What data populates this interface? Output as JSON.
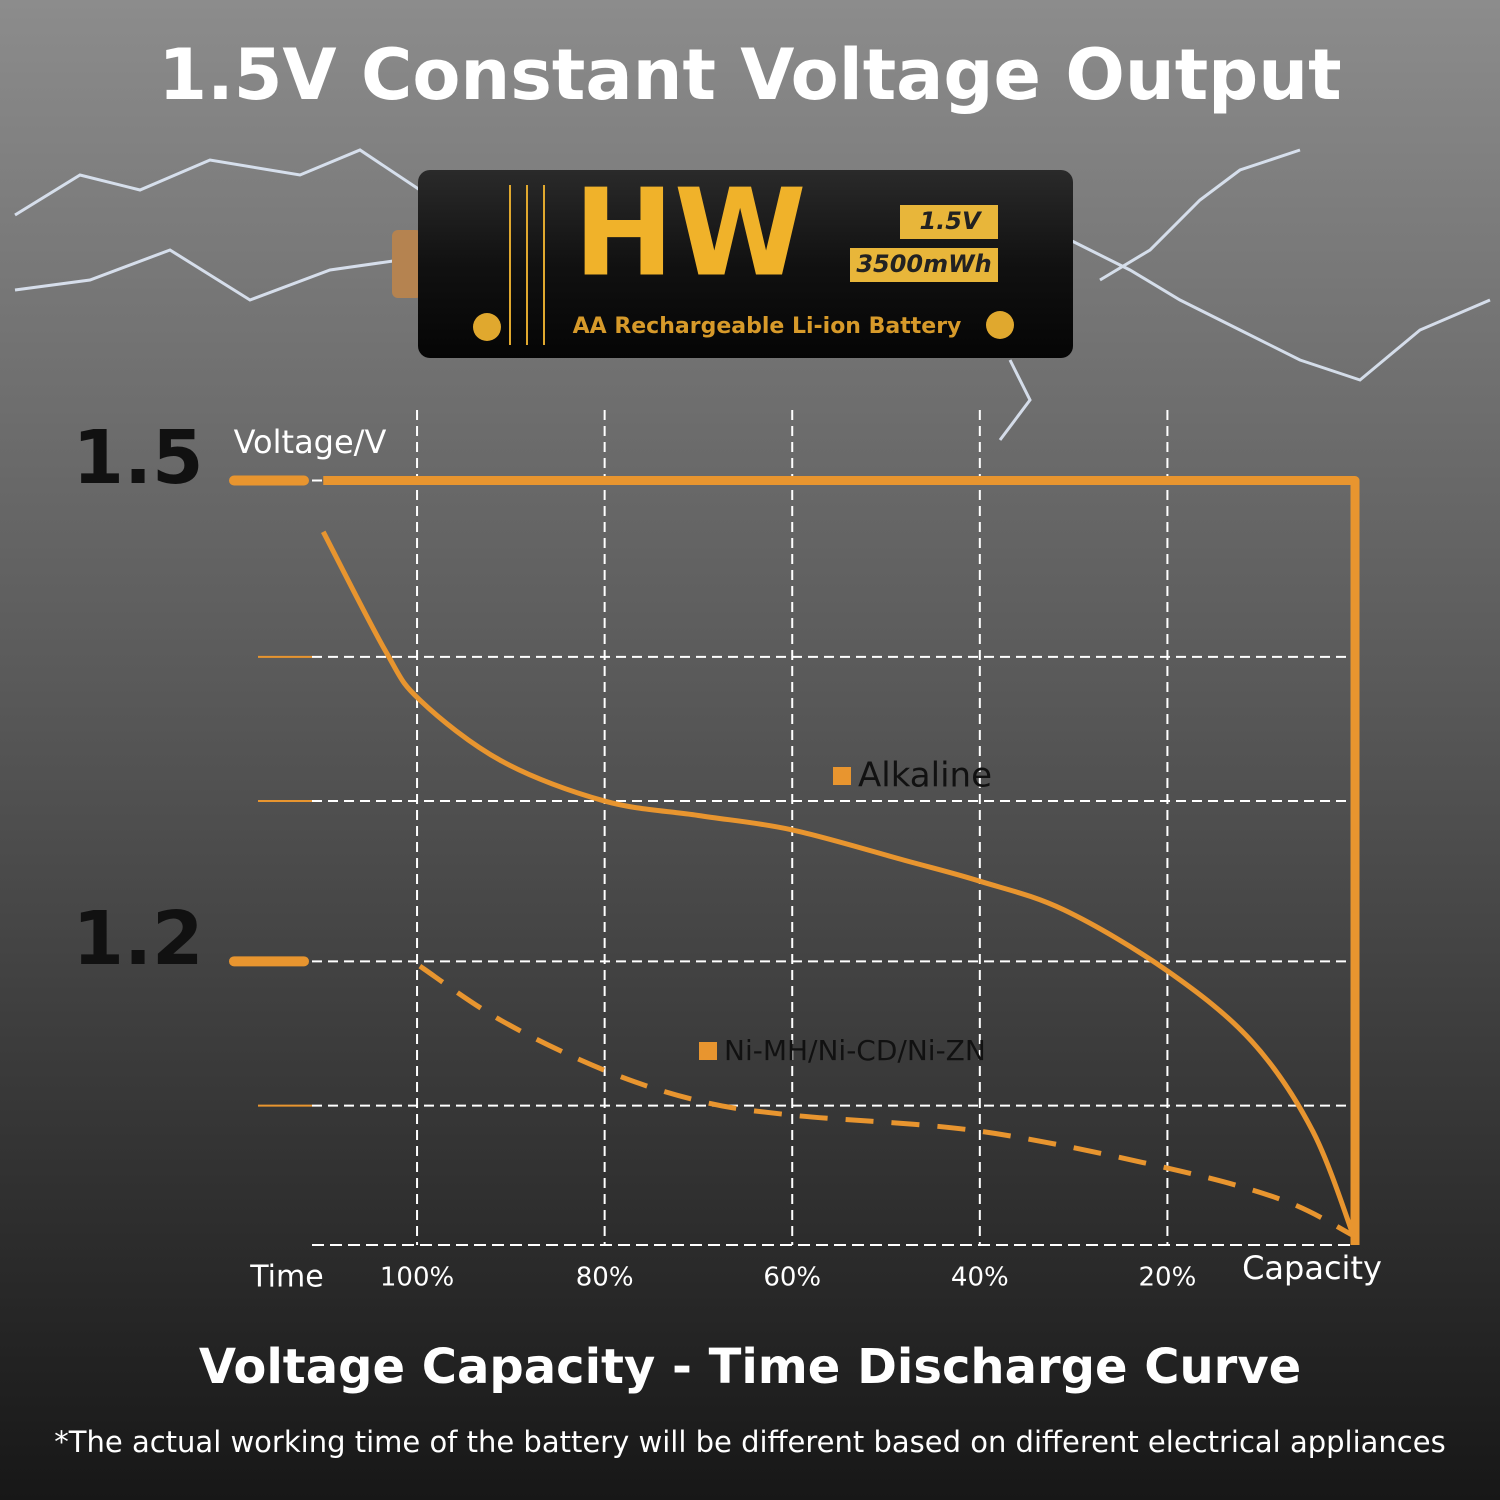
{
  "chart_data": {
    "type": "line",
    "title": "1.5V Constant Voltage Output",
    "subtitle": "Voltage Capacity - Time Discharge Curve",
    "note": "*The actual working time of the battery will be different based on different electrical appliances",
    "battery": {
      "brand": "HW",
      "voltage": "1.5V",
      "energy": "3500mWh",
      "description": "AA Rechargeable Li-ion Battery"
    },
    "ylabel": "Voltage/V",
    "xlabel_left": "Time",
    "xlabel_right": "Capacity",
    "xlim": [
      111.2,
      0
    ],
    "ylim": [
      1.023,
      1.544
    ],
    "xticks": [
      {
        "value": 100,
        "label": "100%"
      },
      {
        "value": 80,
        "label": "80%"
      },
      {
        "value": 60,
        "label": "60%"
      },
      {
        "value": 40,
        "label": "40%"
      },
      {
        "value": 20,
        "label": "20%"
      }
    ],
    "yticks": [
      1.5,
      1.2
    ],
    "minor_yticks": [
      1.39,
      1.3,
      1.11
    ],
    "grid": true,
    "series": [
      {
        "color": "#e8952f",
        "style": "solid",
        "x": [
          110,
          0,
          0
        ],
        "values": [
          1.5,
          1.5,
          1.023
        ]
      },
      {
        "name": "Alkaline",
        "color": "#e8952f",
        "style": "solid",
        "x": [
          110,
          103.4,
          99.7,
          91,
          80,
          70,
          60,
          48,
          40,
          31,
          20,
          11,
          4.5,
          0
        ],
        "values": [
          1.468,
          1.394,
          1.363,
          1.325,
          1.3,
          1.291,
          1.282,
          1.263,
          1.25,
          1.232,
          1.194,
          1.15,
          1.094,
          1.026
        ]
      },
      {
        "name": "Ni-MH/Ni-CD/Ni-ZN",
        "color": "#e8952f",
        "style": "dashed",
        "x": [
          99.7,
          91,
          80,
          70,
          60,
          40,
          20,
          7.7,
          0.2
        ],
        "values": [
          1.197,
          1.163,
          1.132,
          1.113,
          1.104,
          1.094,
          1.071,
          1.051,
          1.029
        ]
      }
    ]
  }
}
